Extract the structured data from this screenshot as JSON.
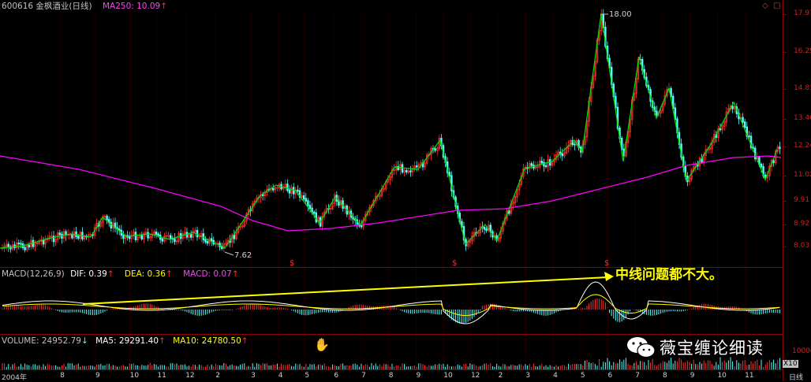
{
  "header": {
    "code_name": "600616 金枫酒业(日线)",
    "ma250": "MA250: 10.09",
    "arrow": "↑",
    "corner_icons": [
      "diamond-icon",
      "square-icon"
    ]
  },
  "price_axis": [
    "17.97",
    "16.29",
    "14.81",
    "13.46",
    "12.24",
    "11.02",
    "9.91",
    "8.92",
    "8.03"
  ],
  "price_annotations": {
    "high": "18.00",
    "low": "7.62"
  },
  "event_marks": [
    "$",
    "$",
    "$"
  ],
  "macd": {
    "title": "MACD(12,26,9)",
    "dif": "DIF: 0.39",
    "dea": "DEA: 0.36",
    "macd": "MACD: 0.07",
    "annotation": "中线问题都不大。"
  },
  "volume": {
    "volume": "VOLUME: 24952.79",
    "ma5": "MA5: 29291.40",
    "ma10": "MA10: 24780.50",
    "axis_top": "10000",
    "unit": "X10"
  },
  "watermark": "薇宝缠论细读",
  "x_axis": {
    "year": "2004年",
    "months": [
      "8",
      "9",
      "10",
      "11",
      "12",
      "2",
      "3",
      "4",
      "5",
      "6",
      "7",
      "8",
      "9",
      "10",
      "12",
      "2",
      "3",
      "4",
      "5",
      "6",
      "7",
      "8",
      "9",
      "10",
      "11"
    ],
    "period": "日线"
  },
  "colors": {
    "up": "#ff3232",
    "down": "#54ffff",
    "ma250": "#ff00ff",
    "zigzag": "#00e000",
    "dif": "#ffffff",
    "dea": "#ffff00",
    "border": "#8b0000"
  }
}
